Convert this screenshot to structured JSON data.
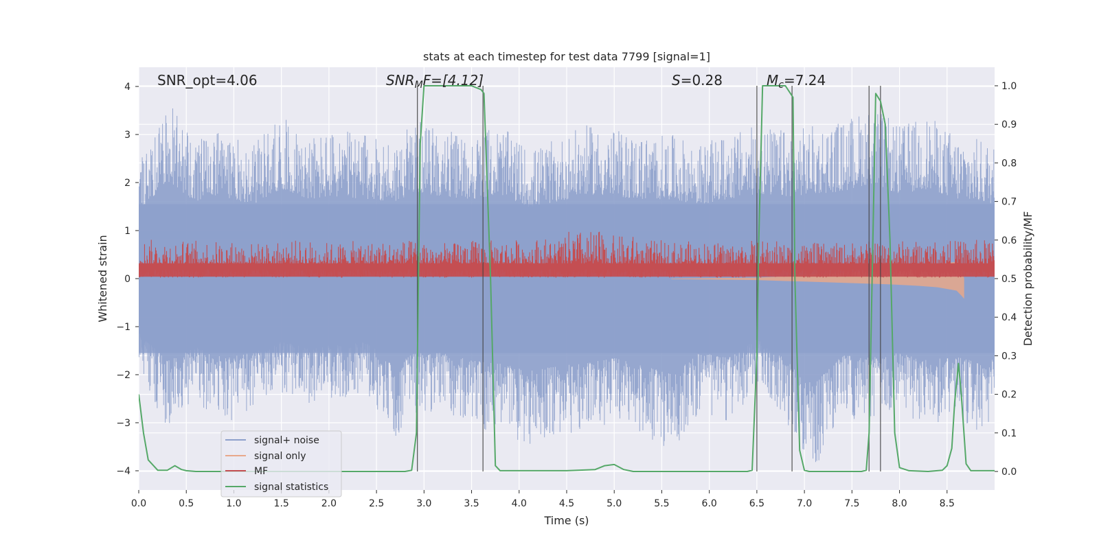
{
  "chart_data": {
    "type": "line",
    "title": "stats at each timestep for test data 7799 [signal=1]",
    "xlabel": "Time (s)",
    "ylabel": "Whitened strain",
    "y2label": "Detection probability/MF",
    "xlim": [
      0.0,
      9.0
    ],
    "ylim": [
      -4.4,
      4.4
    ],
    "y2lim": [
      -0.048,
      1.048
    ],
    "x_ticks": [
      "0.0",
      "0.5",
      "1.0",
      "1.5",
      "2.0",
      "2.5",
      "3.0",
      "3.5",
      "4.0",
      "4.5",
      "5.0",
      "5.5",
      "6.0",
      "6.5",
      "7.0",
      "7.5",
      "8.0",
      "8.5"
    ],
    "y_ticks": [
      "−4",
      "−3",
      "−2",
      "−1",
      "0",
      "1",
      "2",
      "3",
      "4"
    ],
    "y2_ticks": [
      "0.0",
      "0.1",
      "0.2",
      "0.3",
      "0.4",
      "0.5",
      "0.6",
      "0.7",
      "0.8",
      "0.9",
      "1.0"
    ],
    "annotations": {
      "snr_opt": "SNR_opt=4.06",
      "snr_mf_main": "SNR",
      "snr_mf_sub": "M",
      "snr_mf_rest": "F=[4.12]",
      "s_italic": "S",
      "s_rest": "=0.28",
      "mc_main": "M",
      "mc_sub": "c",
      "mc_rest": "=7.24"
    },
    "legend": {
      "position": "lower-left",
      "entries": [
        {
          "label": "signal+ noise",
          "color": "#8da0cb"
        },
        {
          "label": "signal only",
          "color": "#e8a88a"
        },
        {
          "label": "MF",
          "color": "#c44e52"
        },
        {
          "label": "signal statistics",
          "color": "#55a868"
        }
      ]
    },
    "series": [
      {
        "name": "signal+ noise",
        "axis": "left",
        "color": "#8da0cb",
        "envelope_x": [
          0.0,
          0.3,
          0.6,
          0.9,
          1.2,
          1.5,
          1.8,
          2.1,
          2.4,
          2.7,
          2.9,
          3.2,
          3.5,
          3.8,
          4.1,
          4.4,
          4.7,
          5.0,
          5.3,
          5.6,
          5.9,
          6.2,
          6.5,
          6.8,
          7.1,
          7.4,
          7.7,
          8.0,
          8.3,
          8.6,
          8.9,
          9.0
        ],
        "upper": [
          2.5,
          3.7,
          2.9,
          3.1,
          2.8,
          3.4,
          3.0,
          3.1,
          3.0,
          2.9,
          3.3,
          3.1,
          3.0,
          3.2,
          2.7,
          2.9,
          3.2,
          3.1,
          3.0,
          3.0,
          2.8,
          3.0,
          3.2,
          3.1,
          3.2,
          3.3,
          3.6,
          3.2,
          3.4,
          3.0,
          2.9,
          2.8
        ],
        "lower": [
          -2.0,
          -3.1,
          -2.6,
          -3.0,
          -2.8,
          -2.4,
          -2.6,
          -2.5,
          -2.4,
          -3.3,
          -2.8,
          -2.8,
          -3.1,
          -3.2,
          -3.5,
          -3.3,
          -3.2,
          -3.0,
          -3.3,
          -3.6,
          -2.8,
          -3.0,
          -2.3,
          -3.0,
          -4.0,
          -2.9,
          -3.0,
          -2.8,
          -3.1,
          -2.9,
          -3.3,
          -3.0
        ]
      },
      {
        "name": "signal only",
        "axis": "left",
        "color": "#e8a88a",
        "x": [
          5.6,
          6.0,
          6.5,
          6.8,
          7.0,
          7.3,
          7.6,
          7.9,
          8.2,
          8.4,
          8.6,
          8.65,
          8.68
        ],
        "upper": [
          0.0,
          0.01,
          0.02,
          0.05,
          0.08,
          0.1,
          0.15,
          0.2,
          0.25,
          0.3,
          0.35,
          0.3,
          0.0
        ],
        "lower": [
          -0.01,
          -0.02,
          -0.03,
          -0.05,
          -0.06,
          -0.08,
          -0.1,
          -0.12,
          -0.15,
          -0.18,
          -0.25,
          -0.35,
          -0.42
        ]
      },
      {
        "name": "MF",
        "axis": "left",
        "color": "#c44e52",
        "baseline": 0.0,
        "typical_max": 0.7,
        "peaks": [
          0.82,
          0.8,
          0.78,
          0.75,
          0.8,
          0.76,
          0.78,
          0.8,
          0.75,
          0.8,
          0.82,
          0.85,
          1.0,
          0.9,
          0.8,
          0.78,
          0.76,
          0.8,
          0.75,
          0.74,
          0.78,
          0.8,
          0.8,
          0.82
        ]
      },
      {
        "name": "signal statistics",
        "axis": "right",
        "color": "#55a868",
        "x": [
          0.0,
          0.05,
          0.1,
          0.2,
          0.3,
          0.38,
          0.45,
          0.5,
          0.6,
          1.0,
          1.5,
          2.0,
          2.5,
          2.8,
          2.87,
          2.92,
          2.96,
          3.0,
          3.1,
          3.3,
          3.5,
          3.6,
          3.63,
          3.7,
          3.75,
          3.8,
          4.0,
          4.5,
          4.8,
          4.9,
          5.0,
          5.1,
          5.2,
          5.5,
          6.0,
          6.4,
          6.45,
          6.5,
          6.52,
          6.56,
          6.6,
          6.8,
          6.88,
          6.9,
          6.95,
          7.0,
          7.05,
          7.3,
          7.6,
          7.65,
          7.68,
          7.72,
          7.75,
          7.8,
          7.85,
          7.9,
          7.95,
          8.0,
          8.1,
          8.3,
          8.45,
          8.5,
          8.55,
          8.58,
          8.62,
          8.65,
          8.7,
          8.75,
          9.0
        ],
        "y": [
          0.2,
          0.1,
          0.03,
          0.003,
          0.003,
          0.015,
          0.005,
          0.002,
          0.0,
          0.0,
          0.0,
          0.0,
          0.0,
          0.0,
          0.003,
          0.1,
          0.85,
          1.0,
          1.0,
          1.0,
          1.0,
          0.99,
          0.98,
          0.5,
          0.015,
          0.002,
          0.002,
          0.002,
          0.005,
          0.015,
          0.018,
          0.005,
          0.0,
          0.0,
          0.0,
          0.0,
          0.003,
          0.3,
          0.6,
          1.0,
          1.0,
          1.0,
          0.97,
          0.5,
          0.055,
          0.003,
          0.0,
          0.0,
          0.0,
          0.003,
          0.1,
          0.6,
          0.98,
          0.96,
          0.9,
          0.6,
          0.1,
          0.01,
          0.002,
          0.0,
          0.003,
          0.015,
          0.06,
          0.18,
          0.28,
          0.2,
          0.02,
          0.002,
          0.002
        ]
      }
    ],
    "vertical_lines_x": [
      2.93,
      3.62,
      6.5,
      6.87,
      7.68,
      7.8
    ]
  }
}
